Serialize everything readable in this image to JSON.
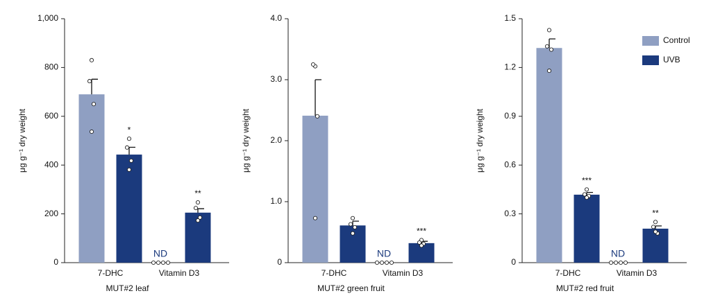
{
  "chart_data": [
    {
      "type": "bar",
      "xlabel": "MUT#2 leaf",
      "ylabel": "μg g⁻¹ dry weight",
      "categories": [
        "7-DHC",
        "Vitamin D3"
      ],
      "ylim": [
        0,
        1000
      ],
      "yticks": [
        0,
        200,
        400,
        600,
        800,
        {
          "value": 1000,
          "label": "1,000"
        }
      ],
      "missing_label": "ND",
      "series": [
        {
          "color": "#8f9fc2",
          "values": [
            690,
            null
          ],
          "errors": [
            62,
            null
          ],
          "points": [
            [
              830,
              744,
              650,
              537
            ],
            [
              0,
              0,
              0,
              0
            ]
          ],
          "significance": [
            null,
            null
          ]
        },
        {
          "color": "#1b3a7d",
          "values": [
            443,
            205
          ],
          "errors": [
            30,
            16
          ],
          "points": [
            [
              508,
              472,
              418,
              381
            ],
            [
              247,
              224,
              185,
              173
            ]
          ],
          "significance": [
            "*",
            "**"
          ]
        }
      ]
    },
    {
      "type": "bar",
      "xlabel": "MUT#2 green fruit",
      "ylabel": "μg g⁻¹ dry weight",
      "categories": [
        "7-DHC",
        "Vitamin D3"
      ],
      "ylim": [
        0,
        4
      ],
      "yticks": [
        0,
        {
          "value": 1,
          "label": "1.0"
        },
        {
          "value": 2,
          "label": "2.0"
        },
        {
          "value": 3,
          "label": "3.0"
        },
        {
          "value": 4,
          "label": "4.0"
        }
      ],
      "missing_label": "ND",
      "series": [
        {
          "color": "#8f9fc2",
          "values": [
            2.41,
            null
          ],
          "errors": [
            0.59,
            null
          ],
          "points": [
            [
              3.22,
              3.25,
              2.4,
              0.73
            ],
            [
              0,
              0,
              0,
              0
            ]
          ],
          "significance": [
            null,
            null
          ]
        },
        {
          "color": "#1b3a7d",
          "values": [
            0.61,
            0.32
          ],
          "errors": [
            0.07,
            0.03
          ],
          "points": [
            [
              0.73,
              0.63,
              0.58,
              0.48
            ],
            [
              0.37,
              0.33,
              0.31,
              0.28
            ]
          ],
          "significance": [
            null,
            "***"
          ]
        }
      ]
    },
    {
      "type": "bar",
      "xlabel": "MUT#2 red fruit",
      "ylabel": "μg g⁻¹ dry weight",
      "categories": [
        "7-DHC",
        "Vitamin D3"
      ],
      "ylim": [
        0,
        1.5
      ],
      "yticks": [
        0,
        0.3,
        0.6,
        0.9,
        1.2,
        1.5
      ],
      "missing_label": "ND",
      "legend": "upper right",
      "series": [
        {
          "name": "Control",
          "color": "#8f9fc2",
          "values": [
            1.32,
            null
          ],
          "errors": [
            0.056,
            null
          ],
          "points": [
            [
              1.43,
              1.33,
              1.31,
              1.18
            ],
            [
              0,
              0,
              0,
              0
            ]
          ],
          "significance": [
            null,
            null
          ]
        },
        {
          "name": "UVB",
          "color": "#1b3a7d",
          "values": [
            0.418,
            0.209
          ],
          "errors": [
            0.014,
            0.017
          ],
          "points": [
            [
              0.45,
              0.42,
              0.41,
              0.4
            ],
            [
              0.25,
              0.22,
              0.18,
              0.19
            ]
          ],
          "significance": [
            "***",
            "**"
          ]
        }
      ]
    }
  ]
}
